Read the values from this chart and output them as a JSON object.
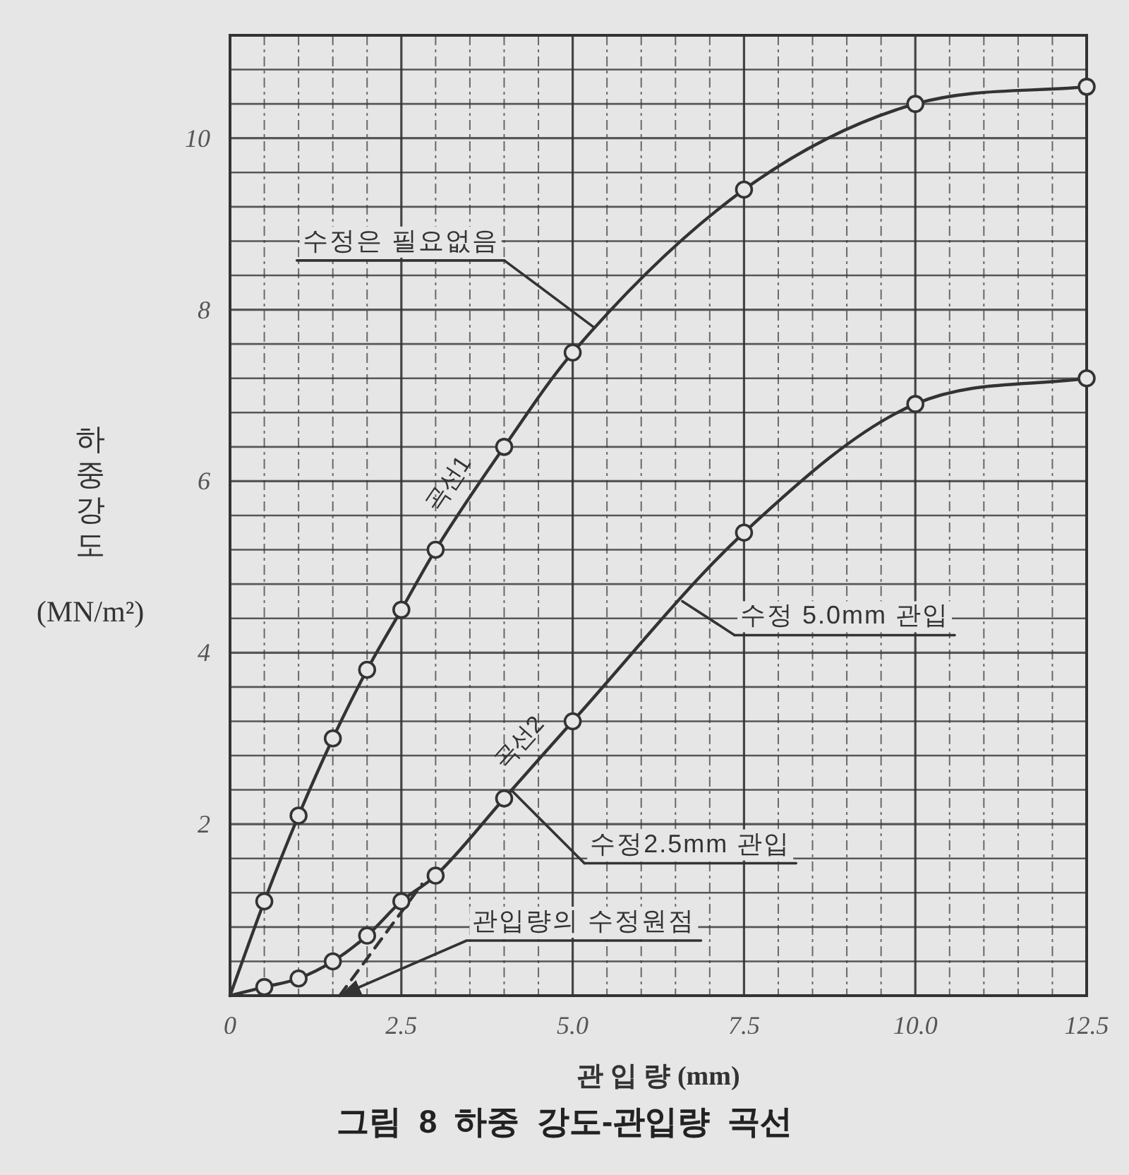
{
  "chart_data": {
    "type": "line",
    "title": "그림 8 하중 강도-관입량 곡선",
    "xlabel": "관 입 량 (mm)",
    "ylabel": "하중강도 (MN/m²)",
    "xlim": [
      0,
      12.5
    ],
    "ylim": [
      0,
      11.2
    ],
    "xticks": [
      0,
      {
        "value": 0.5,
        "label": null
      },
      {
        "value": 1,
        "label": null
      },
      {
        "value": 1.5,
        "label": null
      },
      {
        "value": 2,
        "label": null
      },
      2.5,
      {
        "value": 3,
        "label": null
      },
      {
        "value": 3.5,
        "label": null
      },
      {
        "value": 4,
        "label": null
      },
      {
        "value": 4.5,
        "label": null
      },
      {
        "value": 5,
        "label": "5.0"
      },
      {
        "value": 5.5,
        "label": null
      },
      {
        "value": 6,
        "label": null
      },
      {
        "value": 6.5,
        "label": null
      },
      {
        "value": 7,
        "label": null
      },
      7.5,
      {
        "value": 8,
        "label": null
      },
      {
        "value": 8.5,
        "label": null
      },
      {
        "value": 9,
        "label": null
      },
      {
        "value": 9.5,
        "label": null
      },
      {
        "value": 10,
        "label": "10.0"
      },
      {
        "value": 10.5,
        "label": null
      },
      {
        "value": 11,
        "label": null
      },
      {
        "value": 11.5,
        "label": null
      },
      {
        "value": 12,
        "label": null
      },
      12.5
    ],
    "yticks": [
      {
        "value": 0,
        "label": null
      },
      {
        "value": 0.4,
        "label": null
      },
      {
        "value": 0.8,
        "label": null
      },
      {
        "value": 1.2,
        "label": null
      },
      {
        "value": 1.6,
        "label": null
      },
      2,
      {
        "value": 2.4,
        "label": null
      },
      {
        "value": 2.8,
        "label": null
      },
      {
        "value": 3.2,
        "label": null
      },
      {
        "value": 3.6,
        "label": null
      },
      4,
      {
        "value": 4.4,
        "label": null
      },
      {
        "value": 4.8,
        "label": null
      },
      {
        "value": 5.2,
        "label": null
      },
      {
        "value": 5.6,
        "label": null
      },
      6,
      {
        "value": 6.4,
        "label": null
      },
      {
        "value": 6.8,
        "label": null
      },
      {
        "value": 7.2,
        "label": null
      },
      {
        "value": 7.6,
        "label": null
      },
      8,
      {
        "value": 8.4,
        "label": null
      },
      {
        "value": 8.8,
        "label": null
      },
      {
        "value": 9.2,
        "label": null
      },
      {
        "value": 9.6,
        "label": null
      },
      10,
      {
        "value": 10.4,
        "label": null
      },
      {
        "value": 10.8,
        "label": null
      },
      {
        "value": 11.2,
        "label": null
      }
    ],
    "grid": true,
    "series": [
      {
        "name": "곡선1",
        "marker": "none",
        "color": "#333333",
        "x": [
          0,
          0.5,
          1,
          1.5,
          2,
          2.5,
          3,
          4,
          5,
          7.5,
          10,
          12.5
        ],
        "values": [
          0,
          1.1,
          2.1,
          3.0,
          3.8,
          4.5,
          5.2,
          6.4,
          7.5,
          9.4,
          10.4,
          10.6
        ]
      },
      {
        "type": "scatter",
        "marker": "circle",
        "color": "#333333",
        "x": [
          0.5,
          1,
          1.5,
          2,
          2.5,
          3,
          4,
          5,
          7.5,
          10,
          12.5
        ],
        "values": [
          1.1,
          2.1,
          3.0,
          3.8,
          4.5,
          5.2,
          6.4,
          7.5,
          9.4,
          10.4,
          10.6
        ]
      },
      {
        "name": "곡선2",
        "marker": "none",
        "color": "#333333",
        "x": [
          0,
          0.5,
          1,
          1.5,
          2,
          2.5,
          3,
          4,
          5,
          7.5,
          10,
          12.5
        ],
        "values": [
          0,
          0.1,
          0.2,
          0.4,
          0.7,
          1.1,
          1.4,
          2.3,
          3.2,
          5.4,
          6.9,
          7.2
        ]
      },
      {
        "type": "scatter",
        "marker": "circle",
        "color": "#333333",
        "x": [
          0.5,
          1,
          1.5,
          2,
          2.5,
          3,
          4,
          5,
          7.5,
          10,
          12.5
        ],
        "values": [
          0.1,
          0.2,
          0.4,
          0.7,
          1.1,
          1.4,
          2.3,
          3.2,
          5.4,
          6.9,
          7.2
        ]
      },
      {
        "line_style": "dashed",
        "marker": "none",
        "color": "#333333",
        "x": [
          1.6,
          2.8
        ],
        "values": [
          0,
          1.3
        ]
      }
    ],
    "annotations": [
      {
        "text": "수정은 필요없음",
        "x": 5.3,
        "y": 7.8
      },
      {
        "text": "수정 5.0mm 관입",
        "x": 6.6,
        "y": 4.6
      },
      {
        "text": "수정2.5mm 관입",
        "x": 4.1,
        "y": 2.4
      },
      {
        "text": "관입량의 수정원점",
        "x": 1.6,
        "y": 0
      }
    ]
  }
}
